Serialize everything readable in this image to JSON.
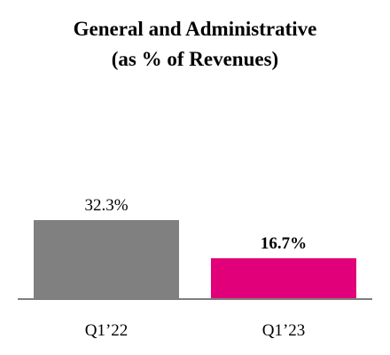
{
  "chart_data": {
    "type": "bar",
    "title": "General and Administrative",
    "subtitle": "(as % of Revenues)",
    "categories": [
      "Q1’22",
      "Q1’23"
    ],
    "values": [
      32.3,
      16.7
    ],
    "data_labels": [
      "32.3%",
      "16.7%"
    ],
    "label_bold": [
      false,
      true
    ],
    "colors": [
      "#808080",
      "#e2007a"
    ],
    "axis_color": "#7f7f7f",
    "ylim": [
      0,
      35
    ],
    "grid": false,
    "legend": "none"
  }
}
